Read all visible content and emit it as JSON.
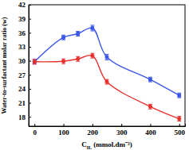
{
  "chart_data": {
    "type": "line",
    "xlabel": "CIL (mmol.dm⁻³)",
    "ylabel": "Water-to-surfactant molar ratio (w)",
    "x": [
      0,
      100,
      150,
      200,
      250,
      400,
      500
    ],
    "series": [
      {
        "color": "#3a56e8",
        "marker": "square",
        "values": [
          29.8,
          35.0,
          35.8,
          37.0,
          30.8,
          26.0,
          22.6
        ],
        "errors": [
          0.5,
          0.5,
          0.5,
          0.6,
          0.6,
          0.5,
          0.5
        ]
      },
      {
        "color": "#e8302c",
        "marker": "circle",
        "values": [
          29.8,
          29.9,
          30.4,
          31.1,
          25.5,
          20.2,
          17.6
        ],
        "errors": [
          0.5,
          0.5,
          0.5,
          0.5,
          0.5,
          0.5,
          0.5
        ]
      }
    ],
    "xlim": [
      -20,
      520
    ],
    "xticks": [
      0,
      100,
      200,
      300,
      400,
      500
    ],
    "ylim": [
      16,
      42
    ],
    "yticks": [
      18,
      21,
      24,
      27,
      30,
      33,
      36,
      39,
      42
    ],
    "grid": false
  }
}
